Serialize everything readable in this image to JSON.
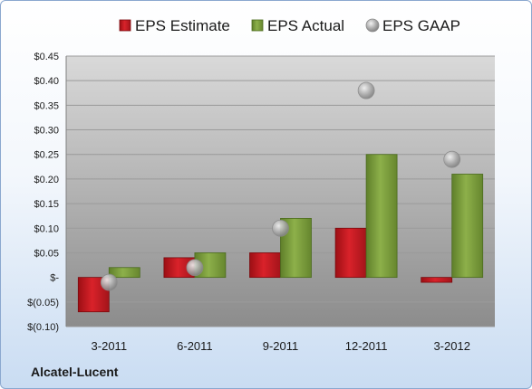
{
  "company_label": "Alcatel-Lucent",
  "colors": {
    "estimate": "#d9222a",
    "actual": "#8db04a",
    "gaap": "#a8a8a8",
    "plot_top": "#d9d9d9",
    "plot_bottom": "#8c8c8c"
  },
  "chart_data": {
    "type": "bar",
    "title": "",
    "xlabel": "",
    "ylabel": "",
    "categories": [
      "3-2011",
      "6-2011",
      "9-2011",
      "12-2011",
      "3-2012"
    ],
    "series": [
      {
        "name": "EPS Estimate",
        "kind": "bar",
        "values": [
          -0.07,
          0.04,
          0.05,
          0.1,
          -0.01
        ]
      },
      {
        "name": "EPS Actual",
        "kind": "bar",
        "values": [
          0.02,
          0.05,
          0.12,
          0.25,
          0.21
        ]
      },
      {
        "name": "EPS GAAP",
        "kind": "marker",
        "values": [
          -0.01,
          0.02,
          0.1,
          0.38,
          0.24
        ]
      }
    ],
    "ylim": [
      -0.1,
      0.45
    ],
    "yticks": [
      0.45,
      0.4,
      0.35,
      0.3,
      0.25,
      0.2,
      0.15,
      0.1,
      0.05,
      0,
      -0.05,
      -0.1
    ],
    "ytick_labels": [
      "$0.45",
      "$0.40",
      "$0.35",
      "$0.30",
      "$0.25",
      "$0.20",
      "$0.15",
      "$0.10",
      "$0.05",
      "$-",
      "$(0.05)",
      "$(0.10)"
    ],
    "grid": true,
    "legend": "top"
  }
}
